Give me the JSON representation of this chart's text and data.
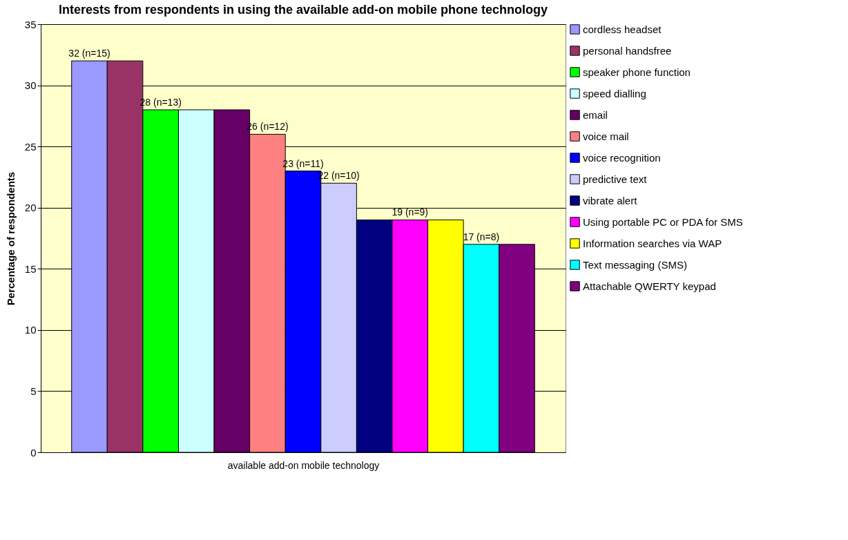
{
  "chart_data": {
    "type": "bar",
    "title": "Interests from respondents in using the available add-on mobile phone technology",
    "xlabel": "available add-on mobile technology",
    "ylabel": "Percentage of respondents",
    "categories": [
      null
    ],
    "ylim": [
      0,
      35
    ],
    "yticks": [
      0,
      5,
      10,
      15,
      20,
      25,
      30,
      35
    ],
    "grid": "y",
    "legend": "right",
    "series": [
      {
        "name": "cordless headset",
        "color": "#9999ff",
        "values": [
          32
        ],
        "value_labels": [
          "32 (n=15)"
        ]
      },
      {
        "name": "personal handsfree",
        "color": "#993366",
        "values": [
          32
        ],
        "value_labels": [
          null
        ]
      },
      {
        "name": "speaker phone function",
        "color": "#00ff00",
        "values": [
          28
        ],
        "value_labels": [
          "28 (n=13)"
        ]
      },
      {
        "name": "speed dialling",
        "color": "#ccffff",
        "values": [
          28
        ],
        "value_labels": [
          null
        ]
      },
      {
        "name": "email",
        "color": "#660066",
        "values": [
          28
        ],
        "value_labels": [
          null
        ]
      },
      {
        "name": "voice mail",
        "color": "#ff8080",
        "values": [
          26
        ],
        "value_labels": [
          "26 (n=12)"
        ]
      },
      {
        "name": "voice recognition",
        "color": "#0000ff",
        "values": [
          23
        ],
        "value_labels": [
          "23 (n=11)"
        ]
      },
      {
        "name": "predictive text",
        "color": "#ccccff",
        "values": [
          22
        ],
        "value_labels": [
          "22 (n=10)"
        ]
      },
      {
        "name": "vibrate alert",
        "color": "#000080",
        "values": [
          19
        ],
        "value_labels": [
          null
        ]
      },
      {
        "name": "Using portable PC or PDA for SMS",
        "color": "#ff00ff",
        "values": [
          19
        ],
        "value_labels": [
          "19 (n=9)"
        ]
      },
      {
        "name": "Information searches via WAP",
        "color": "#ffff00",
        "values": [
          19
        ],
        "value_labels": [
          null
        ]
      },
      {
        "name": "Text messaging (SMS)",
        "color": "#00ffff",
        "values": [
          17
        ],
        "value_labels": [
          "17 (n=8)"
        ]
      },
      {
        "name": "Attachable QWERTY keypad",
        "color": "#800080",
        "values": [
          17
        ],
        "value_labels": [
          null
        ]
      }
    ]
  }
}
